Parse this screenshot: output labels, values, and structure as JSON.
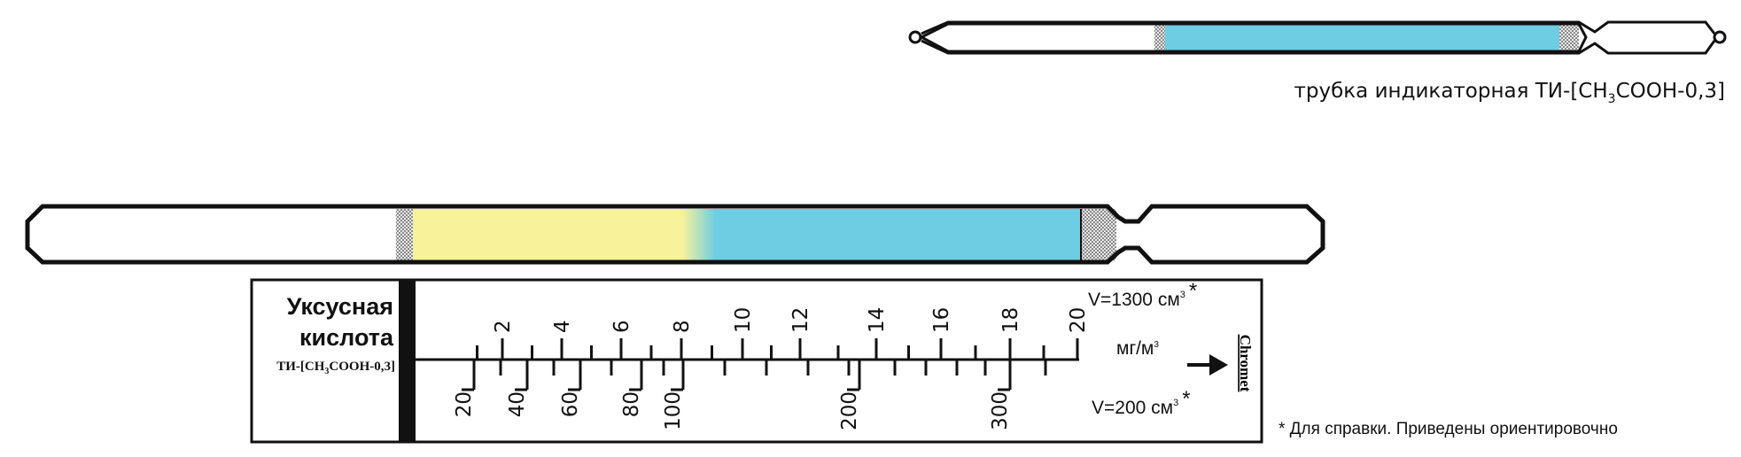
{
  "small_tube": {
    "caption_prefix": "трубка индикаторная ТИ-[CH",
    "caption_sub": "3",
    "caption_suffix": "COOH-0,3]",
    "fill_color": "#6ecde2"
  },
  "large_tube": {
    "zones": [
      {
        "name": "stained",
        "color": "#f8f29a"
      },
      {
        "name": "unreacted",
        "color": "#6ecde2"
      }
    ]
  },
  "scale_card": {
    "substance_line1": "Уксусная",
    "substance_line2": "кислота",
    "tube_code_prefix": "ТИ-[CH",
    "tube_code_sub": "3",
    "tube_code_suffix": "COOH-0,3]",
    "upper_volume": "V=1300 см",
    "upper_volume_sup": "3",
    "upper_volume_star": "*",
    "lower_volume": "V=200 см",
    "lower_volume_sup": "3",
    "lower_volume_star": "*",
    "unit": "мг/м",
    "unit_sup": "3",
    "upper_scale_labels": [
      "2",
      "4",
      "6",
      "8",
      "10",
      "12",
      "14",
      "16",
      "18",
      "20"
    ],
    "lower_scale_labels": [
      "20",
      "40",
      "60",
      "80",
      "100",
      "200",
      "300"
    ],
    "logo": "Chromet"
  },
  "footnote": "* Для справки. Приведены ориентировочно"
}
